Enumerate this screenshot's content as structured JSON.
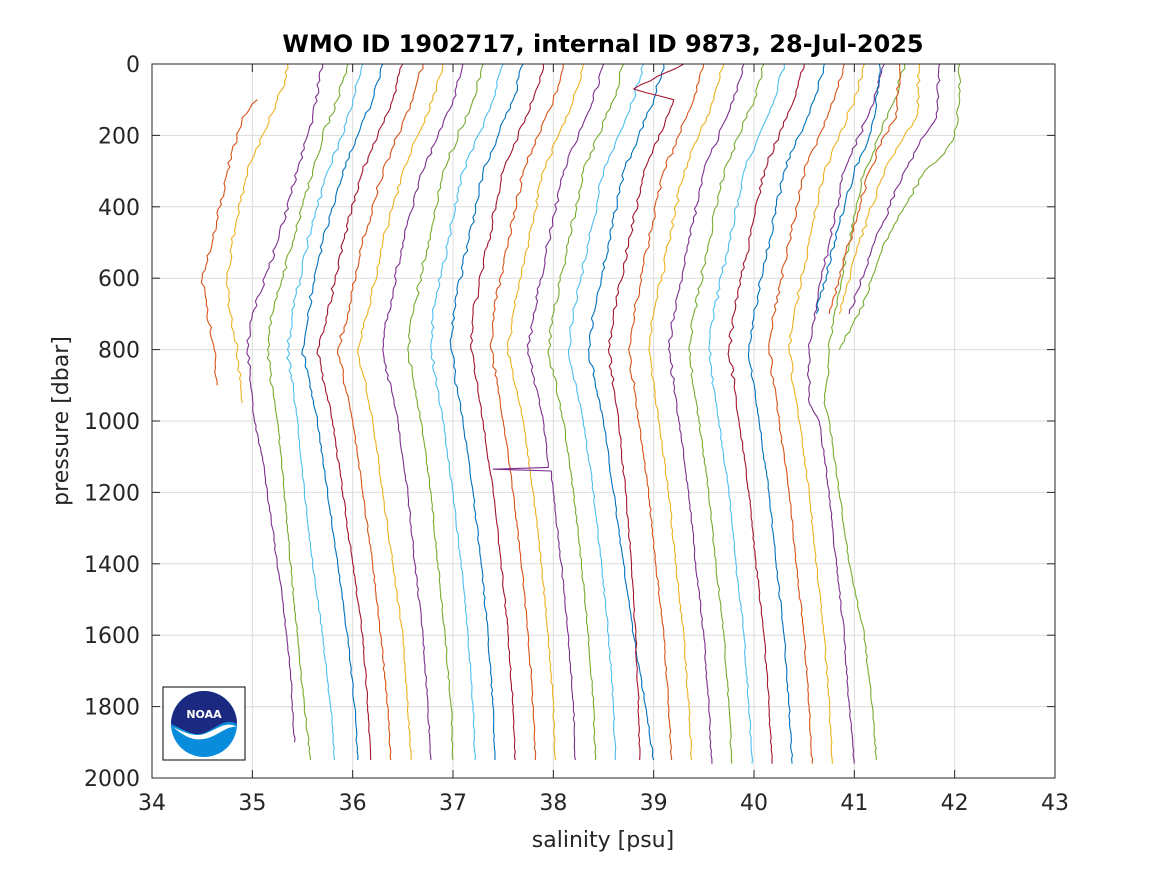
{
  "chart_data": {
    "type": "line",
    "title": "WMO ID 1902717, internal ID 9873, 28-Jul-2025",
    "xlabel": "salinity [psu]",
    "ylabel": "pressure [dbar]",
    "xlim": [
      34,
      43
    ],
    "ylim": [
      0,
      2000
    ],
    "y_reversed": true,
    "grid": true,
    "legend": "none",
    "xticks": [
      "34",
      "35",
      "36",
      "37",
      "38",
      "39",
      "40",
      "41",
      "42",
      "43"
    ],
    "yticks": [
      "0",
      "200",
      "400",
      "600",
      "800",
      "1000",
      "1200",
      "1400",
      "1600",
      "1800",
      "2000"
    ],
    "offset_note": "profiles drawn with successive horizontal offsets; values read from the plot",
    "colors": [
      "#0072BD",
      "#D95319",
      "#EDB120",
      "#7E2F8E",
      "#77AC30",
      "#4DBEEE",
      "#A2142F"
    ],
    "series": [
      {
        "color": "#D95319",
        "p": [
          100,
          150,
          300,
          500,
          600,
          700,
          800,
          900
        ],
        "s": [
          35.05,
          34.9,
          34.75,
          34.6,
          34.5,
          34.55,
          34.62,
          34.65
        ]
      },
      {
        "color": "#EDB120",
        "p": [
          0,
          70,
          100,
          200,
          300,
          500,
          600,
          700,
          800,
          950
        ],
        "s": [
          35.35,
          35.3,
          35.25,
          35.1,
          34.95,
          34.8,
          34.75,
          34.78,
          34.85,
          34.9
        ]
      },
      {
        "color": "#7E2F8E",
        "p": [
          0,
          150,
          200,
          300,
          500,
          700,
          800,
          1000,
          1100,
          1200,
          1300,
          1500,
          1700,
          1900
        ],
        "s": [
          35.7,
          35.6,
          35.55,
          35.45,
          35.25,
          35.0,
          34.95,
          35.02,
          35.1,
          35.15,
          35.2,
          35.3,
          35.38,
          35.42
        ]
      },
      {
        "color": "#77AC30",
        "p": [
          0,
          100,
          200,
          300,
          500,
          700,
          800,
          1000,
          1200,
          1400,
          1600,
          1800,
          1950
        ],
        "s": [
          35.95,
          35.85,
          35.7,
          35.6,
          35.4,
          35.2,
          35.15,
          35.25,
          35.32,
          35.38,
          35.45,
          35.52,
          35.58
        ]
      },
      {
        "color": "#4DBEEE",
        "p": [
          0,
          100,
          200,
          300,
          500,
          700,
          800,
          1000,
          1200,
          1400,
          1600,
          1800,
          1950
        ],
        "s": [
          36.1,
          36.0,
          35.9,
          35.75,
          35.55,
          35.4,
          35.35,
          35.45,
          35.52,
          35.6,
          35.7,
          35.78,
          35.82
        ]
      },
      {
        "color": "#0072BD",
        "p": [
          0,
          100,
          200,
          300,
          500,
          700,
          800,
          1000,
          1200,
          1400,
          1600,
          1800,
          1950
        ],
        "s": [
          36.3,
          36.2,
          36.05,
          35.9,
          35.7,
          35.55,
          35.5,
          35.65,
          35.75,
          35.85,
          35.95,
          36.02,
          36.05
        ]
      },
      {
        "color": "#A2142F",
        "p": [
          0,
          100,
          200,
          300,
          500,
          700,
          800,
          1000,
          1200,
          1400,
          1600,
          1800,
          1950
        ],
        "s": [
          36.5,
          36.4,
          36.25,
          36.1,
          35.9,
          35.75,
          35.65,
          35.8,
          35.9,
          36.0,
          36.1,
          36.15,
          36.18
        ]
      },
      {
        "color": "#D95319",
        "p": [
          0,
          100,
          200,
          300,
          500,
          700,
          800,
          1000,
          1200,
          1400,
          1600,
          1800,
          1950
        ],
        "s": [
          36.7,
          36.6,
          36.45,
          36.3,
          36.1,
          35.95,
          35.85,
          36.0,
          36.1,
          36.2,
          36.28,
          36.35,
          36.38
        ]
      },
      {
        "color": "#EDB120",
        "p": [
          0,
          100,
          200,
          300,
          500,
          700,
          800,
          1000,
          1200,
          1400,
          1600,
          1800,
          1950
        ],
        "s": [
          36.9,
          36.8,
          36.65,
          36.5,
          36.3,
          36.15,
          36.05,
          36.2,
          36.3,
          36.4,
          36.5,
          36.55,
          36.58
        ]
      },
      {
        "color": "#7E2F8E",
        "p": [
          0,
          100,
          200,
          300,
          500,
          700,
          800,
          1000,
          1200,
          1400,
          1600,
          1800,
          1950
        ],
        "s": [
          37.1,
          37.0,
          36.85,
          36.7,
          36.5,
          36.35,
          36.3,
          36.45,
          36.55,
          36.62,
          36.7,
          36.75,
          36.78
        ]
      },
      {
        "color": "#77AC30",
        "p": [
          0,
          100,
          200,
          300,
          500,
          700,
          800,
          1000,
          1200,
          1400,
          1600,
          1800,
          1950
        ],
        "s": [
          37.3,
          37.2,
          37.05,
          36.9,
          36.75,
          36.6,
          36.55,
          36.68,
          36.78,
          36.85,
          36.92,
          36.98,
          37.0
        ]
      },
      {
        "color": "#4DBEEE",
        "p": [
          0,
          100,
          200,
          300,
          500,
          700,
          800,
          1000,
          1200,
          1400,
          1600,
          1800,
          1950
        ],
        "s": [
          37.5,
          37.4,
          37.25,
          37.1,
          36.95,
          36.8,
          36.78,
          36.9,
          37.0,
          37.08,
          37.15,
          37.2,
          37.22
        ]
      },
      {
        "color": "#0072BD",
        "p": [
          0,
          100,
          200,
          300,
          500,
          700,
          800,
          1000,
          1200,
          1400,
          1600,
          1800,
          1950
        ],
        "s": [
          37.7,
          37.6,
          37.45,
          37.3,
          37.15,
          37.0,
          36.98,
          37.1,
          37.2,
          37.28,
          37.35,
          37.4,
          37.42
        ]
      },
      {
        "color": "#A2142F",
        "p": [
          0,
          100,
          200,
          300,
          500,
          700,
          800,
          1000,
          1200,
          1400,
          1600,
          1800,
          1950
        ],
        "s": [
          37.9,
          37.8,
          37.65,
          37.5,
          37.35,
          37.2,
          37.18,
          37.3,
          37.4,
          37.48,
          37.55,
          37.6,
          37.62
        ]
      },
      {
        "color": "#D95319",
        "p": [
          0,
          100,
          200,
          300,
          500,
          700,
          800,
          1000,
          1200,
          1400,
          1600,
          1800,
          1950
        ],
        "s": [
          38.1,
          38.0,
          37.85,
          37.7,
          37.55,
          37.4,
          37.38,
          37.5,
          37.6,
          37.68,
          37.75,
          37.8,
          37.82
        ]
      },
      {
        "color": "#EDB120",
        "p": [
          0,
          100,
          200,
          300,
          500,
          700,
          800,
          1000,
          1200,
          1400,
          1600,
          1800,
          1950
        ],
        "s": [
          38.3,
          38.2,
          38.05,
          37.9,
          37.75,
          37.6,
          37.55,
          37.7,
          37.8,
          37.88,
          37.95,
          38.0,
          38.02
        ]
      },
      {
        "color": "#7E2F8E",
        "p": [
          0,
          100,
          200,
          300,
          500,
          700,
          800,
          1000,
          1130,
          1135,
          1140,
          1200,
          1400,
          1600,
          1800,
          1950
        ],
        "s": [
          38.5,
          38.4,
          38.25,
          38.1,
          37.95,
          37.8,
          37.75,
          37.9,
          37.95,
          37.4,
          37.98,
          38.0,
          38.08,
          38.15,
          38.2,
          38.22
        ]
      },
      {
        "color": "#77AC30",
        "p": [
          0,
          100,
          200,
          300,
          500,
          700,
          800,
          1000,
          1200,
          1400,
          1600,
          1800,
          1950
        ],
        "s": [
          38.7,
          38.6,
          38.45,
          38.3,
          38.15,
          38.0,
          37.95,
          38.1,
          38.2,
          38.28,
          38.35,
          38.4,
          38.42
        ]
      },
      {
        "color": "#4DBEEE",
        "p": [
          0,
          100,
          200,
          300,
          500,
          700,
          800,
          1000,
          1200,
          1400,
          1600,
          1800,
          1950
        ],
        "s": [
          38.9,
          38.8,
          38.65,
          38.5,
          38.35,
          38.2,
          38.15,
          38.3,
          38.4,
          38.48,
          38.55,
          38.6,
          38.62
        ]
      },
      {
        "color": "#0072BD",
        "p": [
          0,
          100,
          200,
          300,
          500,
          700,
          800,
          1000,
          1200,
          1400,
          1600,
          1800,
          1950
        ],
        "s": [
          39.1,
          39.0,
          38.85,
          38.7,
          38.55,
          38.4,
          38.35,
          38.5,
          38.6,
          38.7,
          38.8,
          38.92,
          39.0
        ]
      },
      {
        "color": "#A2142F",
        "p": [
          0,
          70,
          100,
          200,
          300,
          500,
          700,
          800,
          1000,
          1200,
          1400,
          1600,
          1800,
          1950
        ],
        "s": [
          39.3,
          38.8,
          39.2,
          39.05,
          38.9,
          38.75,
          38.6,
          38.55,
          38.65,
          38.72,
          38.78,
          38.82,
          38.85,
          38.86
        ]
      },
      {
        "color": "#D95319",
        "p": [
          0,
          100,
          200,
          300,
          500,
          700,
          800,
          1000,
          1200,
          1400,
          1600,
          1800,
          1950
        ],
        "s": [
          39.5,
          39.4,
          39.25,
          39.1,
          38.95,
          38.8,
          38.75,
          38.85,
          38.95,
          39.02,
          39.1,
          39.15,
          39.18
        ]
      },
      {
        "color": "#EDB120",
        "p": [
          0,
          100,
          200,
          300,
          500,
          700,
          800,
          1000,
          1200,
          1400,
          1600,
          1800,
          1950
        ],
        "s": [
          39.7,
          39.6,
          39.45,
          39.3,
          39.15,
          39.0,
          38.95,
          39.05,
          39.15,
          39.22,
          39.3,
          39.35,
          39.38
        ]
      },
      {
        "color": "#7E2F8E",
        "p": [
          0,
          100,
          200,
          300,
          500,
          700,
          800,
          1000,
          1200,
          1400,
          1600,
          1800,
          1960
        ],
        "s": [
          39.9,
          39.8,
          39.65,
          39.5,
          39.35,
          39.2,
          39.15,
          39.25,
          39.35,
          39.42,
          39.5,
          39.55,
          39.58
        ]
      },
      {
        "color": "#77AC30",
        "p": [
          0,
          100,
          200,
          300,
          500,
          700,
          800,
          1000,
          1200,
          1400,
          1600,
          1800,
          1960
        ],
        "s": [
          40.1,
          40.0,
          39.85,
          39.7,
          39.55,
          39.4,
          39.35,
          39.45,
          39.55,
          39.62,
          39.7,
          39.75,
          39.78
        ]
      },
      {
        "color": "#4DBEEE",
        "p": [
          0,
          100,
          200,
          300,
          500,
          700,
          800,
          1000,
          1200,
          1400,
          1600,
          1800,
          1960
        ],
        "s": [
          40.3,
          40.2,
          40.05,
          39.9,
          39.75,
          39.6,
          39.55,
          39.65,
          39.75,
          39.82,
          39.9,
          39.95,
          39.98
        ]
      },
      {
        "color": "#A2142F",
        "p": [
          0,
          100,
          200,
          300,
          500,
          700,
          800,
          1000,
          1200,
          1400,
          1600,
          1800,
          1960
        ],
        "s": [
          40.5,
          40.4,
          40.25,
          40.1,
          39.95,
          39.8,
          39.75,
          39.85,
          39.95,
          40.02,
          40.1,
          40.15,
          40.18
        ]
      },
      {
        "color": "#0072BD",
        "p": [
          0,
          100,
          200,
          300,
          500,
          700,
          800,
          1000,
          1200,
          1400,
          1600,
          1800,
          1960
        ],
        "s": [
          40.7,
          40.6,
          40.45,
          40.3,
          40.15,
          40.0,
          39.95,
          40.05,
          40.15,
          40.22,
          40.3,
          40.35,
          40.38
        ]
      },
      {
        "color": "#D95319",
        "p": [
          0,
          100,
          200,
          300,
          500,
          700,
          800,
          1000,
          1200,
          1400,
          1600,
          1800,
          1960
        ],
        "s": [
          40.9,
          40.8,
          40.65,
          40.5,
          40.35,
          40.2,
          40.15,
          40.25,
          40.35,
          40.42,
          40.5,
          40.55,
          40.58
        ]
      },
      {
        "color": "#EDB120",
        "p": [
          0,
          100,
          200,
          300,
          500,
          700,
          800,
          1000,
          1200,
          1400,
          1600,
          1800,
          1960
        ],
        "s": [
          41.1,
          41.0,
          40.85,
          40.7,
          40.55,
          40.4,
          40.35,
          40.45,
          40.55,
          40.62,
          40.7,
          40.75,
          40.78
        ]
      },
      {
        "color": "#7E2F8E",
        "p": [
          0,
          100,
          200,
          300,
          500,
          700,
          800,
          950,
          1000,
          1200,
          1400,
          1600,
          1800,
          1960
        ],
        "s": [
          41.3,
          41.2,
          41.05,
          40.9,
          40.75,
          40.6,
          40.55,
          40.55,
          40.65,
          40.75,
          40.82,
          40.9,
          40.95,
          41.0
        ]
      },
      {
        "color": "#77AC30",
        "p": [
          0,
          100,
          200,
          300,
          500,
          700,
          800,
          950,
          1000,
          1200,
          1400,
          1600,
          1800,
          1950
        ],
        "s": [
          41.5,
          41.4,
          41.25,
          41.1,
          40.95,
          40.8,
          40.75,
          40.7,
          40.75,
          40.85,
          40.95,
          41.1,
          41.18,
          41.22
        ]
      },
      {
        "color": "#0072BD",
        "p": [
          0,
          150,
          200,
          300,
          500,
          700
        ],
        "s": [
          41.25,
          41.2,
          41.15,
          41.0,
          40.8,
          40.62
        ]
      },
      {
        "color": "#D95319",
        "p": [
          0,
          150,
          200,
          300,
          500,
          700
        ],
        "s": [
          41.45,
          41.42,
          41.3,
          41.15,
          40.95,
          40.75
        ]
      },
      {
        "color": "#EDB120",
        "p": [
          0,
          150,
          200,
          300,
          500,
          700
        ],
        "s": [
          41.65,
          41.62,
          41.5,
          41.3,
          41.05,
          40.85
        ]
      },
      {
        "color": "#7E2F8E",
        "p": [
          0,
          150,
          200,
          300,
          500,
          700
        ],
        "s": [
          41.85,
          41.82,
          41.7,
          41.5,
          41.2,
          40.95
        ]
      },
      {
        "color": "#77AC30",
        "p": [
          0,
          100,
          200,
          250,
          300,
          400,
          500,
          700,
          800
        ],
        "s": [
          42.05,
          42.05,
          42.0,
          41.9,
          41.7,
          41.5,
          41.3,
          41.05,
          40.85
        ]
      }
    ]
  },
  "logo": {
    "text": "NOAA",
    "colors": {
      "dark": "#1b2a80",
      "light": "#0a8cdc"
    }
  }
}
